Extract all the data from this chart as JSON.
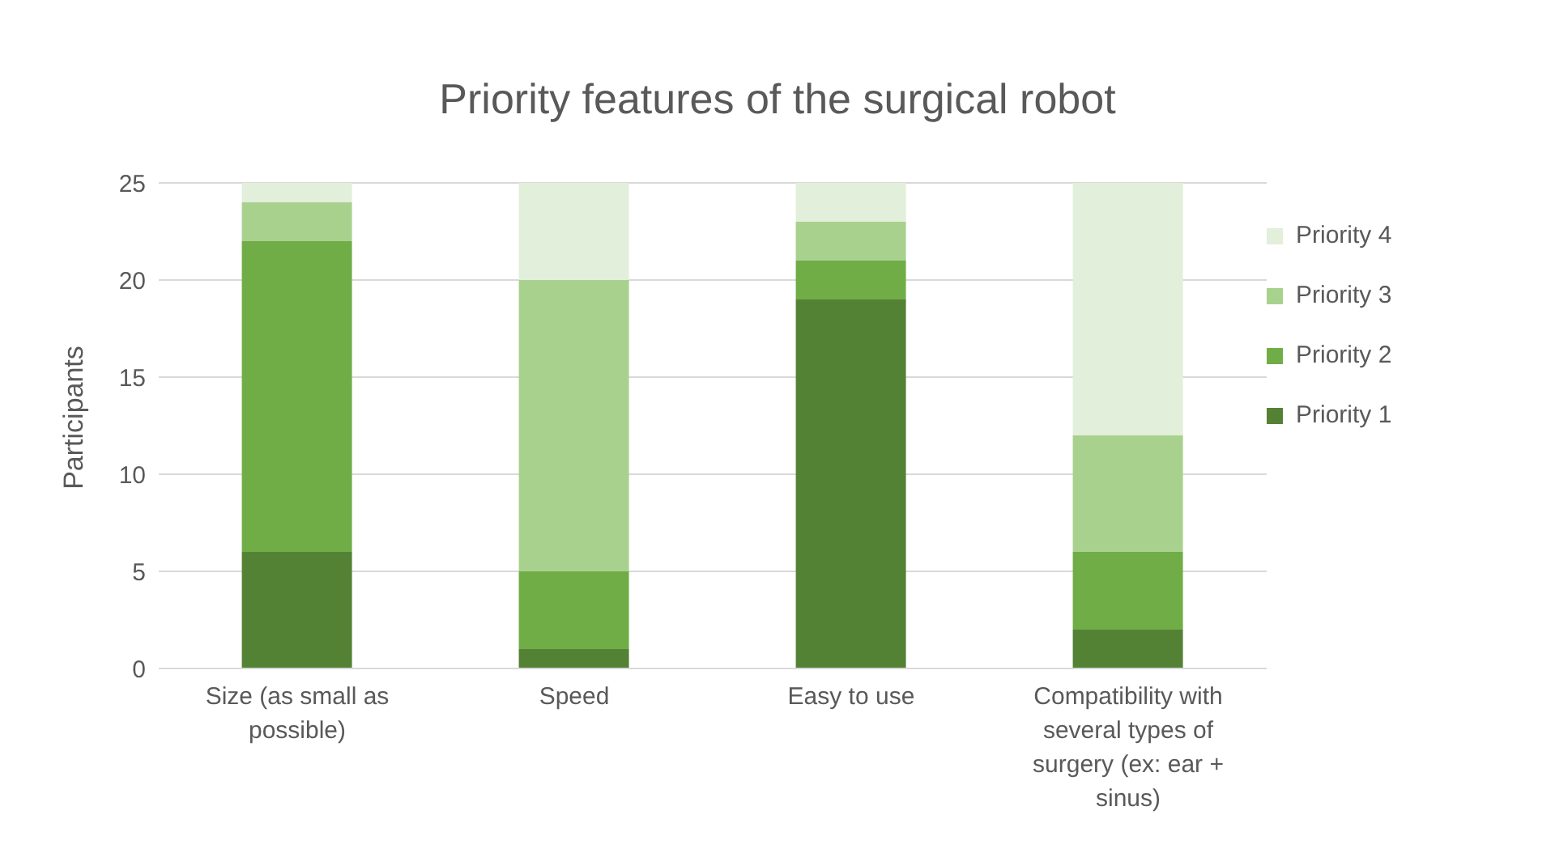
{
  "chart_data": {
    "type": "bar",
    "title": "Priority features of the surgical robot",
    "ylabel": "Participants",
    "categories": [
      "Size (as small as possible)",
      "Speed",
      "Easy to use",
      "Compatibility with several types of surgery (ex: ear + sinus)"
    ],
    "series": [
      {
        "name": "Priority 1",
        "color": "#548235",
        "values": [
          6,
          1,
          19,
          2
        ]
      },
      {
        "name": "Priority 2",
        "color": "#70ad47",
        "values": [
          16,
          4,
          2,
          4
        ]
      },
      {
        "name": "Priority 3",
        "color": "#a9d18e",
        "values": [
          2,
          15,
          2,
          6
        ]
      },
      {
        "name": "Priority 4",
        "color": "#e2efda",
        "values": [
          1,
          5,
          2,
          13
        ]
      }
    ],
    "stacked": true,
    "ylim": [
      0,
      25
    ],
    "yticks": [
      0,
      5,
      10,
      15,
      20,
      25
    ],
    "grid": "y",
    "legend": "right"
  }
}
